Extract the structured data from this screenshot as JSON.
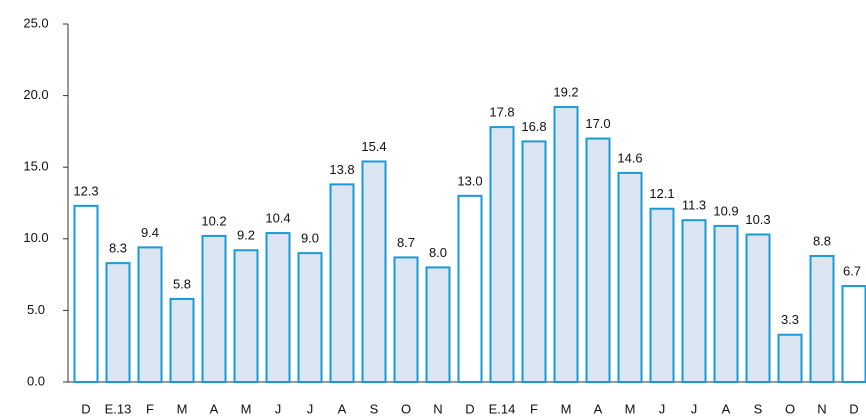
{
  "chart_data": {
    "type": "bar",
    "categories": [
      "D",
      "E.13",
      "F",
      "M",
      "A",
      "M",
      "J",
      "J",
      "A",
      "S",
      "O",
      "N",
      "D",
      "E.14",
      "F",
      "M",
      "A",
      "M",
      "J",
      "J",
      "A",
      "S",
      "O",
      "N",
      "D"
    ],
    "values": [
      12.3,
      8.3,
      9.4,
      5.8,
      10.2,
      9.2,
      10.4,
      9.0,
      13.8,
      15.4,
      8.7,
      8.0,
      13.0,
      17.8,
      16.8,
      19.2,
      17.0,
      14.6,
      12.1,
      11.3,
      10.9,
      10.3,
      3.3,
      8.8,
      6.7
    ],
    "value_labels": [
      "12.3",
      "8.3",
      "9.4",
      "5.8",
      "10.2",
      "9.2",
      "10.4",
      "9.0",
      "13.8",
      "15.4",
      "8.7",
      "8.0",
      "13.0",
      "17.8",
      "16.8",
      "19.2",
      "17.0",
      "14.6",
      "12.1",
      "11.3",
      "10.9",
      "10.3",
      "3.3",
      "8.8",
      "6.7"
    ],
    "colors": [
      "#ffffff",
      "#dce6f2",
      "#dce6f2",
      "#dce6f2",
      "#dce6f2",
      "#dce6f2",
      "#dce6f2",
      "#dce6f2",
      "#dce6f2",
      "#dce6f2",
      "#dce6f2",
      "#dce6f2",
      "#ffffff",
      "#dce6f2",
      "#dce6f2",
      "#dce6f2",
      "#dce6f2",
      "#dce6f2",
      "#dce6f2",
      "#dce6f2",
      "#dce6f2",
      "#dce6f2",
      "#dce6f2",
      "#dce6f2",
      "#ffffff"
    ],
    "edge_color": "#1a9ad6",
    "ylim": [
      0,
      25
    ],
    "yticks": [
      {
        "value": 0,
        "label": "0.0"
      },
      {
        "value": 5,
        "label": "5.0"
      },
      {
        "value": 10,
        "label": "10.0"
      },
      {
        "value": 15,
        "label": "15.0"
      },
      {
        "value": 20,
        "label": "20.0"
      },
      {
        "value": 25,
        "label": "25.0"
      }
    ],
    "grid": false
  }
}
